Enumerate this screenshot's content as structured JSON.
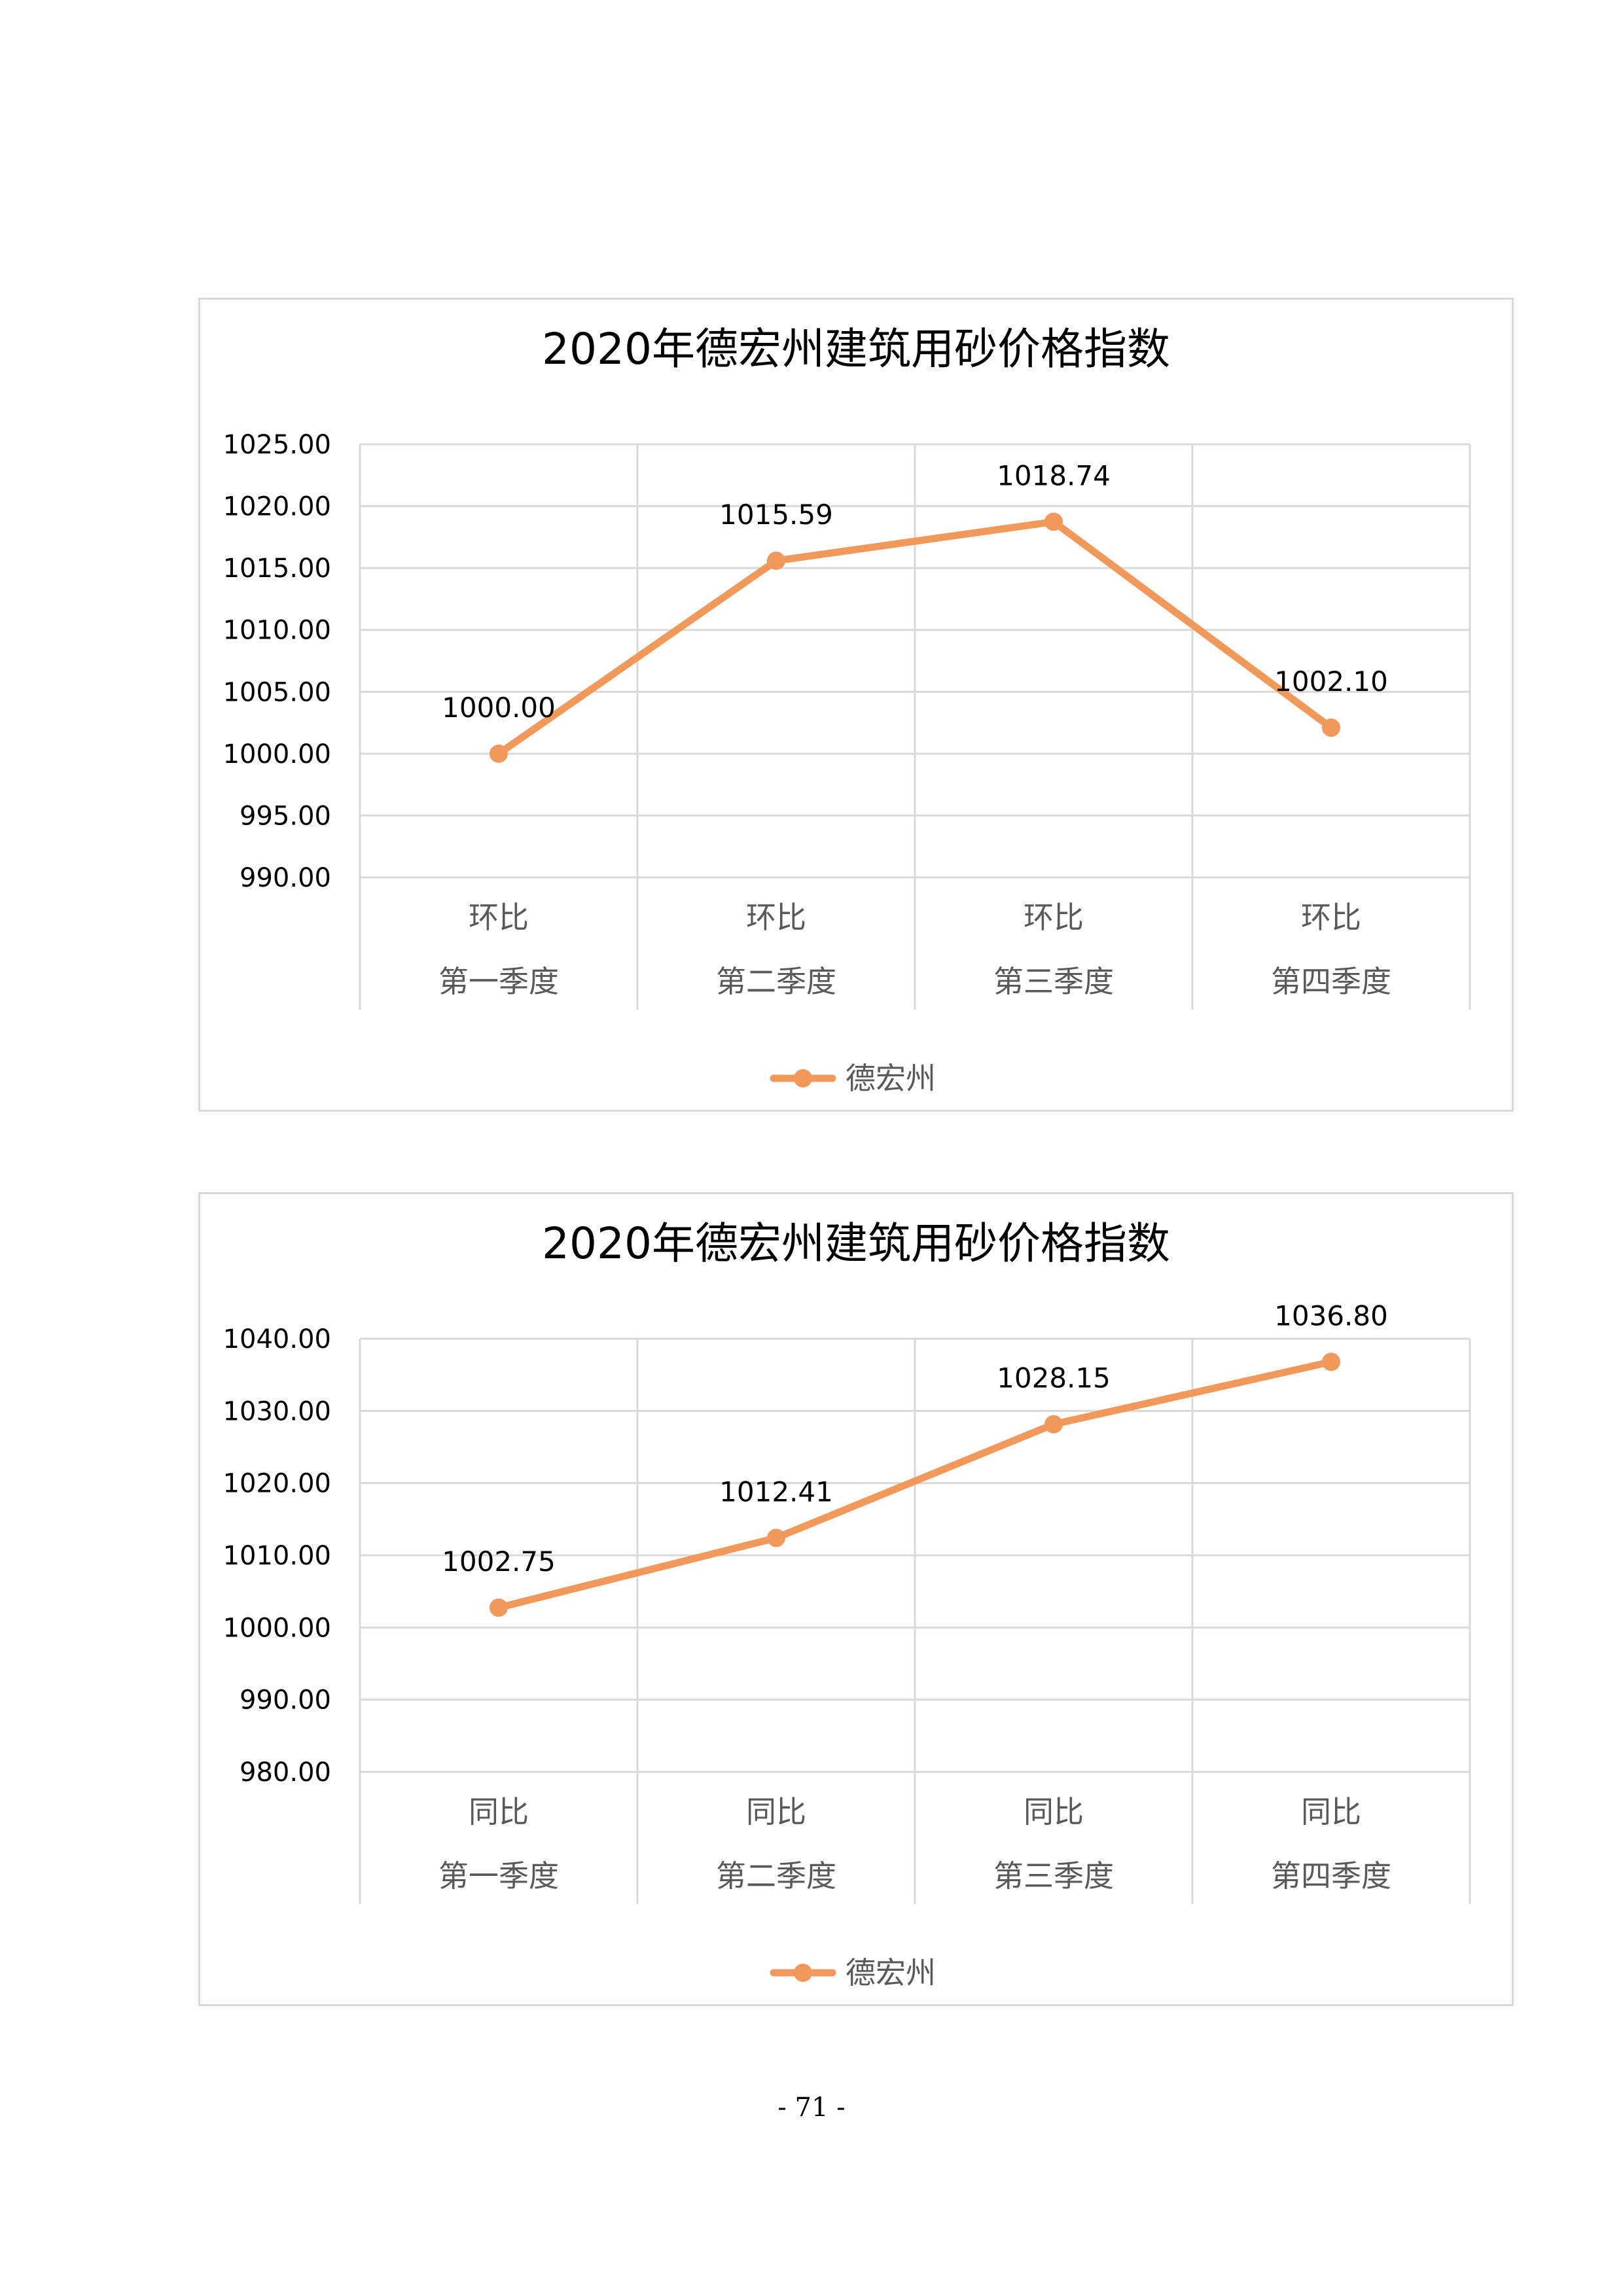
{
  "colors": {
    "series": "#f0995a",
    "grid": "#d9d9d9",
    "text": "#595959",
    "title": "#000000"
  },
  "chart_data": [
    {
      "type": "line",
      "title": "2020年德宏州建筑用砂价格指数",
      "categories": [
        [
          "环比",
          "第一季度"
        ],
        [
          "环比",
          "第二季度"
        ],
        [
          "环比",
          "第三季度"
        ],
        [
          "环比",
          "第四季度"
        ]
      ],
      "series": [
        {
          "name": "德宏州",
          "values": [
            1000.0,
            1015.59,
            1018.74,
            1002.1
          ]
        }
      ],
      "data_labels": [
        "1000.00",
        "1015.59",
        "1018.74",
        "1002.10"
      ],
      "yticks": [
        "990.00",
        "995.00",
        "1000.00",
        "1005.00",
        "1010.00",
        "1015.00",
        "1020.00",
        "1025.00"
      ],
      "ylim": [
        990,
        1025
      ],
      "grid": true,
      "legend": "bottom"
    },
    {
      "type": "line",
      "title": "2020年德宏州建筑用砂价格指数",
      "categories": [
        [
          "同比",
          "第一季度"
        ],
        [
          "同比",
          "第二季度"
        ],
        [
          "同比",
          "第三季度"
        ],
        [
          "同比",
          "第四季度"
        ]
      ],
      "series": [
        {
          "name": "德宏州",
          "values": [
            1002.75,
            1012.41,
            1028.15,
            1036.8
          ]
        }
      ],
      "data_labels": [
        "1002.75",
        "1012.41",
        "1028.15",
        "1036.80"
      ],
      "yticks": [
        "980.00",
        "990.00",
        "1000.00",
        "1010.00",
        "1020.00",
        "1030.00",
        "1040.00"
      ],
      "ylim": [
        980,
        1040
      ],
      "grid": true,
      "legend": "bottom"
    }
  ],
  "page": {
    "number": "- 71 -"
  }
}
